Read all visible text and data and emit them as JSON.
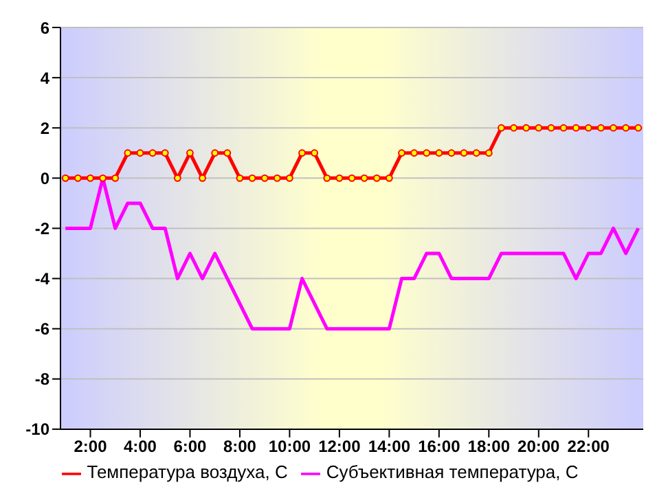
{
  "chart_data": {
    "type": "line",
    "x": [
      1,
      1.5,
      2,
      2.5,
      3,
      3.5,
      4,
      4.5,
      5,
      5.5,
      6,
      6.5,
      7,
      7.5,
      8,
      8.5,
      9,
      9.5,
      10,
      10.5,
      11,
      11.5,
      12,
      12.5,
      13,
      13.5,
      14,
      14.5,
      15,
      15.5,
      16,
      16.5,
      17,
      17.5,
      18,
      18.5,
      19,
      19.5,
      20,
      20.5,
      21,
      21.5,
      22,
      22.5,
      23,
      23.5,
      24
    ],
    "series": [
      {
        "name": "Температура воздуха, С",
        "color": "#ff0000",
        "marker": "circle",
        "values": [
          0,
          0,
          0,
          0,
          0,
          1,
          1,
          1,
          1,
          0,
          1,
          0,
          1,
          1,
          0,
          0,
          0,
          0,
          0,
          1,
          1,
          0,
          0,
          0,
          0,
          0,
          0,
          1,
          1,
          1,
          1,
          1,
          1,
          1,
          1,
          2,
          2,
          2,
          2,
          2,
          2,
          2,
          2,
          2,
          2,
          2,
          2
        ]
      },
      {
        "name": "Субъективная температура, С",
        "color": "#ff00ff",
        "marker": "none",
        "values": [
          -2,
          -2,
          -2,
          0,
          -2,
          -1,
          -1,
          -2,
          -2,
          -4,
          -3,
          -4,
          -3,
          -4,
          -5,
          -6,
          -6,
          -6,
          -6,
          -4,
          -5,
          -6,
          -6,
          -6,
          -6,
          -6,
          -6,
          -4,
          -4,
          -3,
          -3,
          -4,
          -4,
          -4,
          -4,
          -3,
          -3,
          -3,
          -3,
          -3,
          -3,
          -4,
          -3,
          -3,
          -2,
          -3,
          -2
        ]
      }
    ],
    "xlim": [
      0.8,
      24.2
    ],
    "xticks": [
      {
        "value": 2,
        "label": "2:00"
      },
      {
        "value": 4,
        "label": "4:00"
      },
      {
        "value": 6,
        "label": "6:00"
      },
      {
        "value": 8,
        "label": "8:00"
      },
      {
        "value": 10,
        "label": "10:00"
      },
      {
        "value": 12,
        "label": "12:00"
      },
      {
        "value": 14,
        "label": "14:00"
      },
      {
        "value": 16,
        "label": "16:00"
      },
      {
        "value": 18,
        "label": "18:00"
      },
      {
        "value": 20,
        "label": "20:00"
      },
      {
        "value": 22,
        "label": "22:00"
      }
    ],
    "ylim": [
      -10,
      6
    ],
    "yticks": [
      -10,
      -8,
      -6,
      -4,
      -2,
      0,
      2,
      4,
      6
    ],
    "grid": "y",
    "legend": "bottom"
  }
}
